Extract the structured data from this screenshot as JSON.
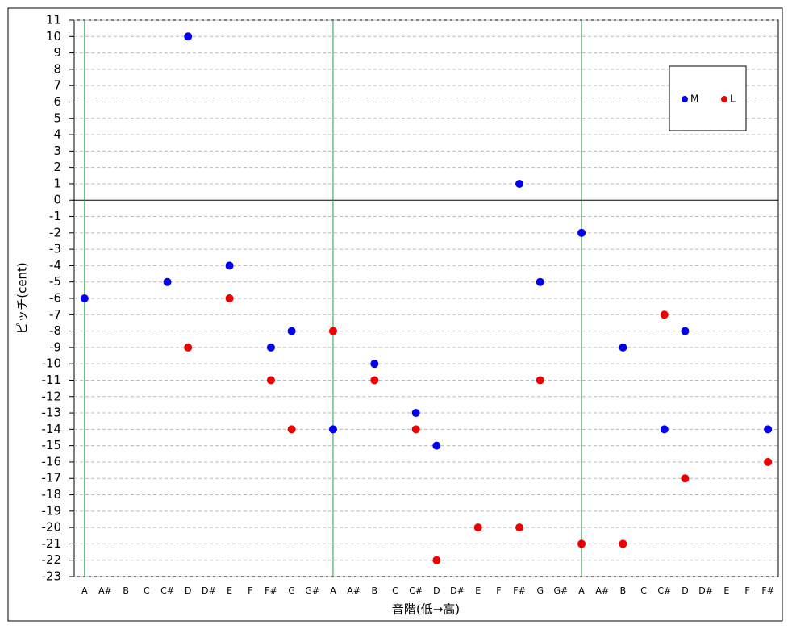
{
  "chart_data": {
    "type": "scatter",
    "x_label": "音階(低→高)",
    "y_label": "ピッチ(cent)",
    "categories": [
      "A",
      "A#",
      "B",
      "C",
      "C#",
      "D",
      "D#",
      "E",
      "F",
      "F#",
      "G",
      "G#",
      "A",
      "A#",
      "B",
      "C",
      "C#",
      "D",
      "D#",
      "E",
      "F",
      "F#",
      "G",
      "G#",
      "A",
      "A#",
      "B",
      "C",
      "C#",
      "D",
      "D#",
      "E",
      "F",
      "F#"
    ],
    "series": [
      {
        "name": "M",
        "color": "#0000ee",
        "values": [
          -6,
          null,
          null,
          null,
          -5,
          10,
          null,
          -4,
          null,
          -9,
          -8,
          null,
          -14,
          null,
          -10,
          null,
          -13,
          -15,
          null,
          null,
          null,
          1,
          -5,
          null,
          -2,
          null,
          -9,
          null,
          -14,
          -8,
          null,
          null,
          null,
          -14
        ]
      },
      {
        "name": "L",
        "color": "#ee0000",
        "values": [
          null,
          null,
          null,
          null,
          null,
          -9,
          null,
          -6,
          null,
          -11,
          -14,
          null,
          -8,
          null,
          -11,
          null,
          -14,
          -22,
          null,
          -20,
          null,
          -20,
          -11,
          null,
          -21,
          null,
          -21,
          null,
          -7,
          -17,
          null,
          null,
          null,
          -16
        ]
      }
    ],
    "ylim": [
      -23,
      11
    ],
    "yticks": [
      -23,
      -22,
      -21,
      -20,
      -19,
      -18,
      -17,
      -16,
      -15,
      -14,
      -13,
      -12,
      -11,
      -10,
      -9,
      -8,
      -7,
      -6,
      -5,
      -4,
      -3,
      -2,
      -1,
      0,
      1,
      2,
      3,
      4,
      5,
      6,
      7,
      8,
      9,
      10,
      11
    ],
    "grid": true,
    "legend": "upper right"
  }
}
